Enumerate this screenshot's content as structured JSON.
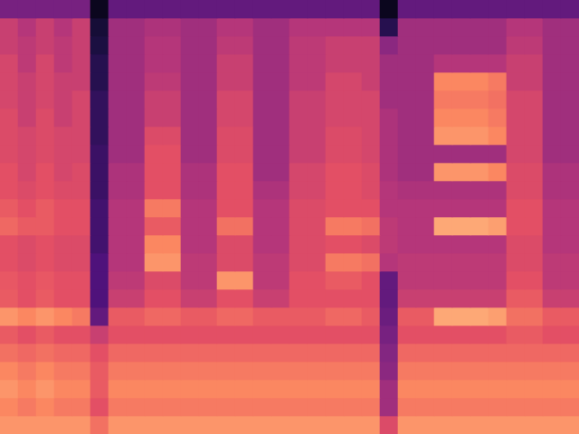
{
  "chart_data": {
    "type": "heatmap",
    "tick_labels": false,
    "grid": false,
    "zlim": [
      0,
      100
    ],
    "cells": [
      [
        35,
        35,
        35,
        35,
        35,
        5,
        30,
        30,
        30,
        30,
        30,
        30,
        30,
        30,
        30,
        30,
        30,
        30,
        30,
        30,
        30,
        5,
        30,
        30,
        30,
        30,
        30,
        30,
        30,
        30,
        30,
        30
      ],
      [
        55,
        50,
        55,
        50,
        55,
        10,
        45,
        45,
        48,
        48,
        45,
        45,
        50,
        50,
        45,
        45,
        50,
        50,
        50,
        50,
        50,
        15,
        45,
        45,
        45,
        45,
        45,
        45,
        50,
        50,
        45,
        45
      ],
      [
        55,
        52,
        55,
        52,
        55,
        12,
        45,
        45,
        50,
        50,
        45,
        45,
        52,
        52,
        45,
        45,
        52,
        52,
        55,
        55,
        55,
        40,
        45,
        45,
        45,
        45,
        45,
        45,
        52,
        52,
        45,
        45
      ],
      [
        58,
        52,
        58,
        52,
        55,
        15,
        45,
        45,
        50,
        50,
        45,
        45,
        55,
        55,
        45,
        45,
        52,
        52,
        55,
        55,
        55,
        45,
        45,
        45,
        50,
        50,
        50,
        50,
        55,
        55,
        45,
        45
      ],
      [
        58,
        55,
        58,
        55,
        55,
        15,
        45,
        45,
        52,
        52,
        45,
        45,
        55,
        55,
        45,
        45,
        52,
        52,
        58,
        58,
        55,
        45,
        45,
        45,
        75,
        75,
        75,
        72,
        55,
        55,
        45,
        45
      ],
      [
        58,
        55,
        58,
        55,
        58,
        18,
        45,
        45,
        55,
        55,
        45,
        45,
        58,
        58,
        45,
        45,
        55,
        55,
        58,
        58,
        58,
        45,
        45,
        45,
        72,
        72,
        72,
        70,
        58,
        58,
        45,
        45
      ],
      [
        60,
        55,
        60,
        55,
        58,
        18,
        45,
        45,
        55,
        55,
        45,
        45,
        58,
        58,
        45,
        45,
        55,
        55,
        58,
        58,
        58,
        48,
        45,
        45,
        75,
        75,
        75,
        72,
        58,
        58,
        45,
        45
      ],
      [
        60,
        58,
        60,
        58,
        58,
        18,
        45,
        45,
        60,
        60,
        45,
        45,
        60,
        60,
        45,
        45,
        55,
        55,
        60,
        60,
        58,
        48,
        45,
        45,
        78,
        78,
        78,
        75,
        58,
        58,
        45,
        45
      ],
      [
        60,
        58,
        60,
        58,
        58,
        20,
        45,
        45,
        62,
        62,
        45,
        45,
        60,
        60,
        45,
        45,
        55,
        55,
        60,
        60,
        58,
        48,
        45,
        45,
        45,
        45,
        45,
        45,
        58,
        58,
        45,
        45
      ],
      [
        62,
        58,
        62,
        58,
        60,
        20,
        48,
        48,
        62,
        62,
        48,
        48,
        62,
        62,
        45,
        45,
        58,
        58,
        62,
        62,
        60,
        48,
        45,
        45,
        78,
        78,
        78,
        75,
        60,
        60,
        48,
        48
      ],
      [
        62,
        60,
        62,
        60,
        60,
        20,
        48,
        48,
        62,
        62,
        48,
        48,
        62,
        62,
        48,
        48,
        58,
        58,
        62,
        62,
        60,
        50,
        48,
        48,
        48,
        48,
        48,
        48,
        60,
        60,
        48,
        48
      ],
      [
        65,
        62,
        65,
        62,
        62,
        22,
        50,
        50,
        72,
        72,
        50,
        50,
        62,
        62,
        50,
        50,
        60,
        60,
        62,
        62,
        62,
        50,
        50,
        50,
        50,
        50,
        50,
        50,
        62,
        62,
        50,
        50
      ],
      [
        68,
        65,
        65,
        62,
        62,
        22,
        50,
        50,
        65,
        65,
        50,
        50,
        70,
        70,
        50,
        50,
        60,
        60,
        72,
        72,
        70,
        52,
        50,
        50,
        82,
        82,
        82,
        80,
        62,
        62,
        50,
        50
      ],
      [
        62,
        60,
        62,
        60,
        60,
        22,
        50,
        50,
        75,
        75,
        50,
        50,
        60,
        60,
        50,
        50,
        60,
        60,
        62,
        62,
        60,
        52,
        50,
        50,
        50,
        50,
        50,
        50,
        60,
        60,
        50,
        50
      ],
      [
        62,
        60,
        62,
        60,
        60,
        25,
        50,
        50,
        78,
        78,
        52,
        52,
        60,
        60,
        52,
        52,
        60,
        60,
        72,
        72,
        70,
        50,
        52,
        52,
        52,
        52,
        52,
        52,
        60,
        60,
        52,
        52
      ],
      [
        64,
        62,
        64,
        62,
        62,
        25,
        52,
        52,
        60,
        60,
        52,
        52,
        78,
        78,
        52,
        52,
        62,
        62,
        65,
        65,
        62,
        30,
        52,
        52,
        52,
        52,
        52,
        52,
        62,
        62,
        52,
        52
      ],
      [
        65,
        62,
        65,
        62,
        62,
        25,
        55,
        55,
        62,
        62,
        55,
        55,
        62,
        62,
        55,
        55,
        62,
        62,
        62,
        62,
        62,
        30,
        55,
        55,
        55,
        55,
        55,
        55,
        65,
        65,
        55,
        55
      ],
      [
        78,
        75,
        78,
        75,
        72,
        30,
        65,
        65,
        68,
        68,
        65,
        65,
        68,
        68,
        65,
        65,
        65,
        65,
        68,
        68,
        65,
        32,
        65,
        65,
        82,
        82,
        82,
        80,
        70,
        70,
        65,
        65
      ],
      [
        65,
        62,
        65,
        62,
        62,
        55,
        62,
        62,
        62,
        62,
        62,
        62,
        62,
        62,
        62,
        62,
        62,
        62,
        62,
        62,
        62,
        35,
        62,
        62,
        62,
        62,
        62,
        62,
        65,
        65,
        62,
        62
      ],
      [
        70,
        68,
        70,
        68,
        68,
        62,
        68,
        68,
        68,
        68,
        68,
        68,
        68,
        68,
        68,
        68,
        68,
        68,
        68,
        68,
        68,
        38,
        68,
        68,
        68,
        68,
        68,
        68,
        68,
        68,
        68,
        68
      ],
      [
        75,
        72,
        75,
        72,
        72,
        65,
        72,
        72,
        72,
        72,
        72,
        72,
        72,
        72,
        72,
        72,
        72,
        72,
        72,
        72,
        72,
        40,
        72,
        72,
        72,
        72,
        72,
        72,
        72,
        72,
        72,
        72
      ],
      [
        78,
        75,
        78,
        75,
        75,
        65,
        75,
        75,
        75,
        75,
        75,
        75,
        75,
        75,
        75,
        75,
        75,
        75,
        75,
        75,
        75,
        45,
        75,
        75,
        75,
        75,
        75,
        75,
        75,
        75,
        75,
        75
      ],
      [
        75,
        72,
        75,
        72,
        72,
        62,
        72,
        72,
        72,
        72,
        72,
        72,
        72,
        72,
        72,
        72,
        72,
        72,
        72,
        72,
        72,
        45,
        72,
        72,
        72,
        72,
        72,
        72,
        72,
        72,
        72,
        72
      ],
      [
        78,
        78,
        78,
        78,
        78,
        70,
        78,
        78,
        78,
        78,
        78,
        78,
        78,
        78,
        78,
        78,
        78,
        78,
        78,
        78,
        78,
        60,
        78,
        78,
        78,
        78,
        78,
        78,
        78,
        78,
        78,
        78
      ]
    ]
  }
}
